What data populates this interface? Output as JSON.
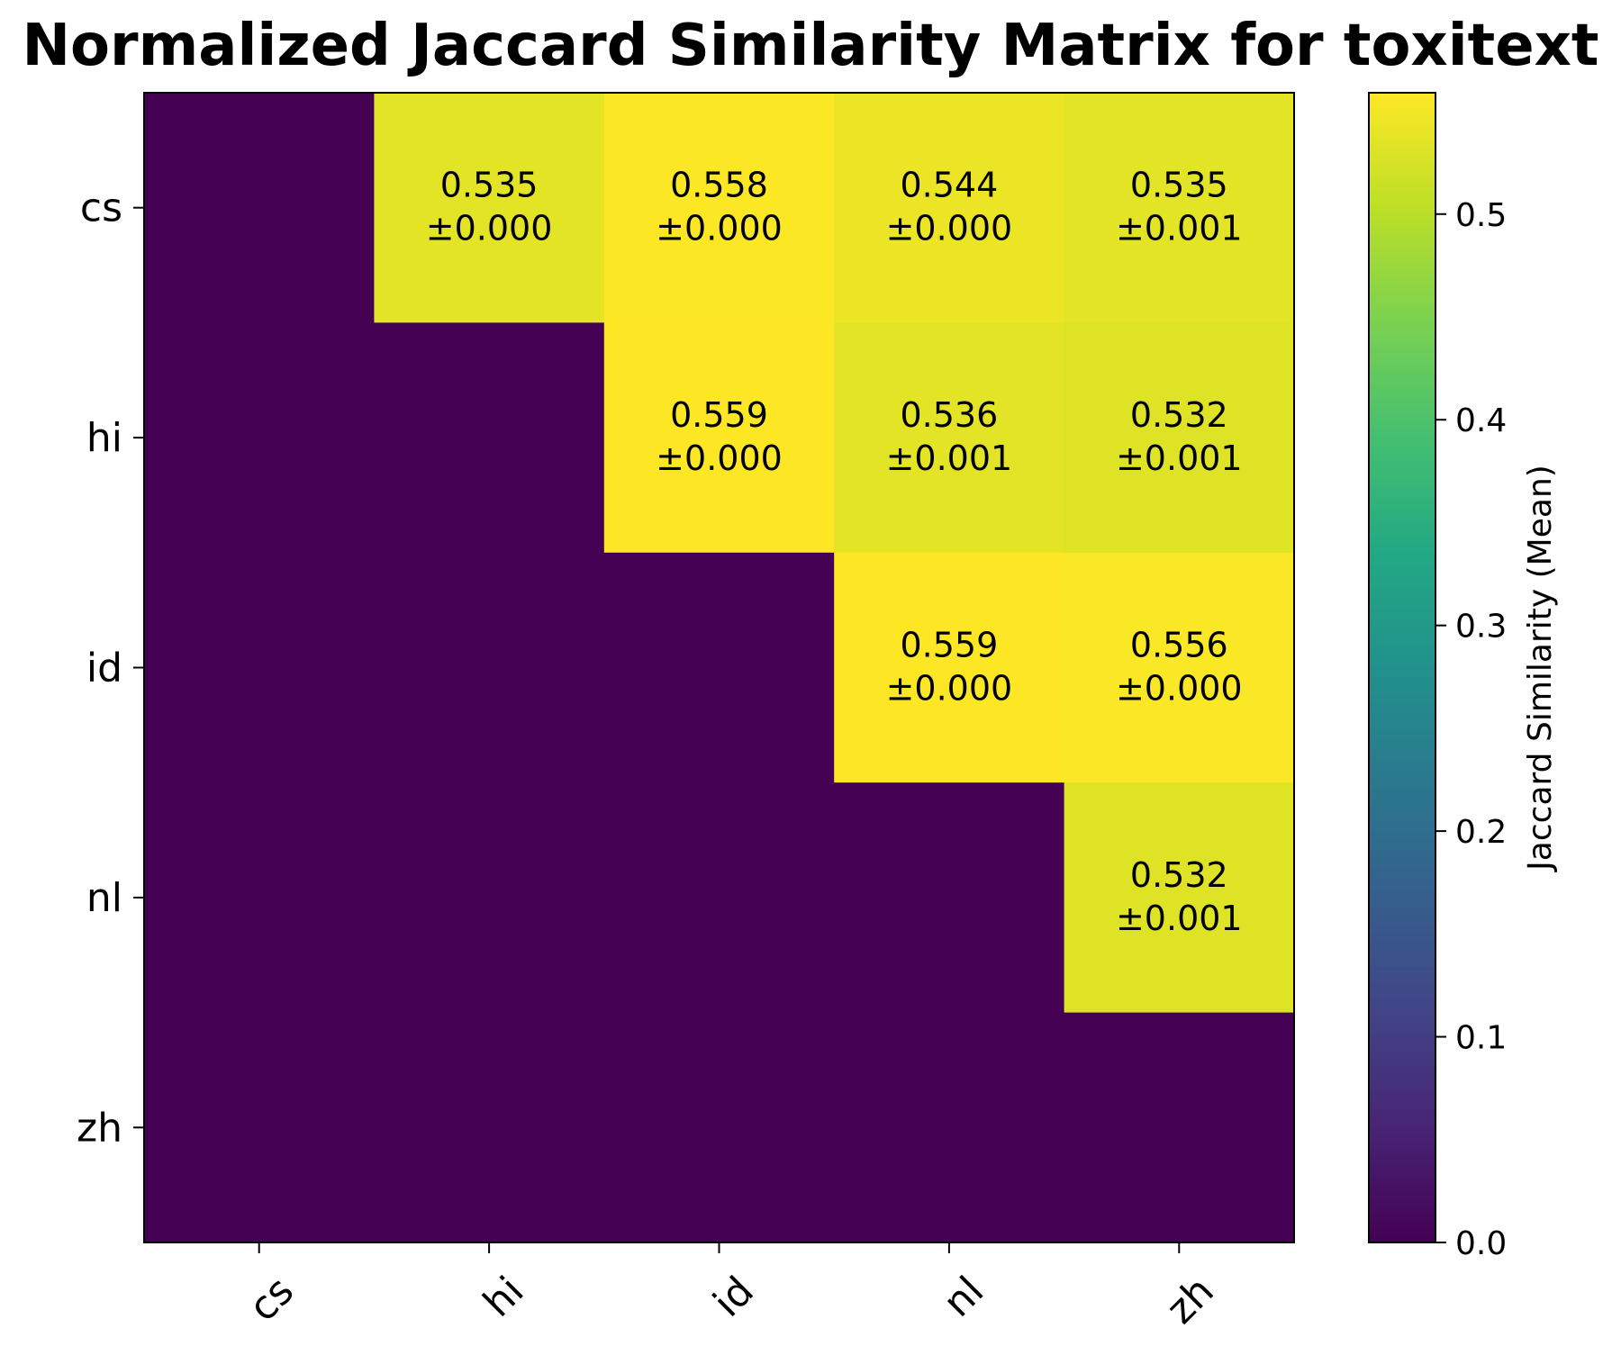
{
  "chart_data": {
    "type": "heatmap",
    "title": "Normalized Jaccard Similarity Matrix for toxitext",
    "rows": [
      "cs",
      "hi",
      "id",
      "nl",
      "zh"
    ],
    "columns": [
      "cs",
      "hi",
      "id",
      "nl",
      "zh"
    ],
    "values": [
      [
        0.0,
        0.535,
        0.558,
        0.544,
        0.535
      ],
      [
        0.0,
        0.0,
        0.559,
        0.536,
        0.532
      ],
      [
        0.0,
        0.0,
        0.0,
        0.559,
        0.556
      ],
      [
        0.0,
        0.0,
        0.0,
        0.0,
        0.532
      ],
      [
        0.0,
        0.0,
        0.0,
        0.0,
        0.0
      ]
    ],
    "annotations": [
      [
        null,
        [
          "0.535",
          "±0.000"
        ],
        [
          "0.558",
          "±0.000"
        ],
        [
          "0.544",
          "±0.000"
        ],
        [
          "0.535",
          "±0.001"
        ]
      ],
      [
        null,
        null,
        [
          "0.559",
          "±0.000"
        ],
        [
          "0.536",
          "±0.001"
        ],
        [
          "0.532",
          "±0.001"
        ]
      ],
      [
        null,
        null,
        null,
        [
          "0.559",
          "±0.000"
        ],
        [
          "0.556",
          "±0.000"
        ]
      ],
      [
        null,
        null,
        null,
        null,
        [
          "0.532",
          "±0.001"
        ]
      ],
      [
        null,
        null,
        null,
        null,
        null
      ]
    ],
    "colorbar": {
      "label": "Jaccard Similarity (Mean)",
      "range": [
        0.0,
        0.559
      ],
      "ticks": [
        0.0,
        0.1,
        0.2,
        0.3,
        0.4,
        0.5
      ],
      "tick_labels": [
        "0.0",
        "0.1",
        "0.2",
        "0.3",
        "0.4",
        "0.5"
      ],
      "colormap": "viridis"
    }
  }
}
